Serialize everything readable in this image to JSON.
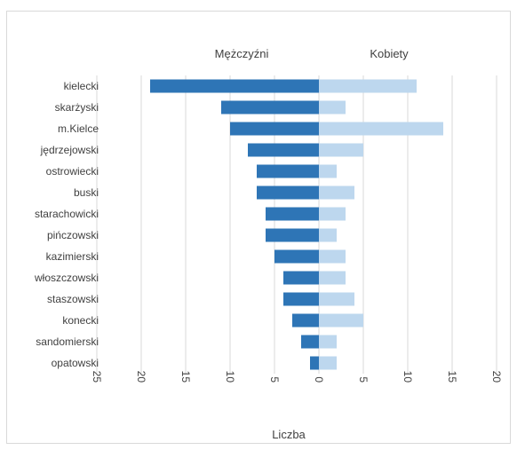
{
  "chart_data": {
    "type": "bar",
    "orientation": "horizontal-diverging",
    "xlabel": "Liczba",
    "categories": [
      "kielecki",
      "skarżyski",
      "m.Kielce",
      "jędrzejowski",
      "ostrowiecki",
      "buski",
      "starachowicki",
      "pińczowski",
      "kazimierski",
      "włoszczowski",
      "staszowski",
      "konecki",
      "sandomierski",
      "opatowski"
    ],
    "series": [
      {
        "name": "Mężczyźni",
        "color": "#2e75b6",
        "values": [
          19,
          11,
          10,
          8,
          7,
          7,
          6,
          6,
          5,
          4,
          4,
          3,
          2,
          1
        ]
      },
      {
        "name": "Kobiety",
        "color": "#bdd7ee",
        "values": [
          11,
          3,
          14,
          5,
          2,
          4,
          3,
          2,
          3,
          3,
          4,
          5,
          2,
          2
        ]
      }
    ],
    "xlim": [
      -25,
      20
    ],
    "xticks": [
      -25,
      -20,
      -15,
      -10,
      -5,
      0,
      5,
      10,
      15,
      20
    ],
    "xtick_labels": [
      "25",
      "20",
      "15",
      "10",
      "5",
      "0",
      "5",
      "10",
      "15",
      "20"
    ],
    "grid": true,
    "legend_position": "top"
  }
}
